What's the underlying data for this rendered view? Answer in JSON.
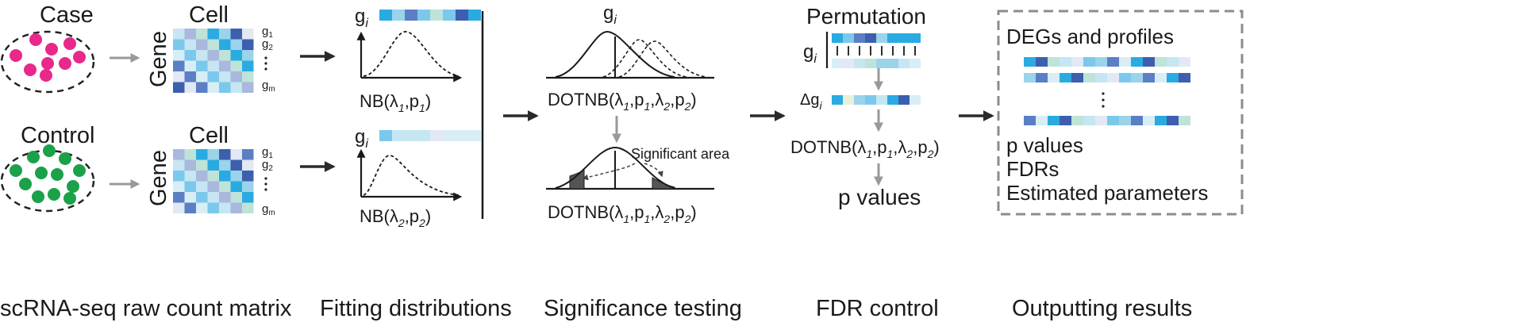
{
  "raw_count": {
    "case_label": "Case",
    "control_label": "Control",
    "cell_label": "Cell",
    "gene_label": "Gene",
    "g1": "g",
    "g1_sub": "1",
    "g2": "g",
    "g2_sub": "2",
    "gm": "g",
    "gm_sub": "m",
    "stage_label": "scRNA-seq raw count matrix"
  },
  "fitting": {
    "gi": "g",
    "gi_sub": "i",
    "nb1": "NB(λ",
    "nb1_s1": "1",
    "nb1_mid": ",p",
    "nb1_s2": "1",
    "nb1_end": ")",
    "nb2": "NB(λ",
    "nb2_s1": "2",
    "nb2_mid": ",p",
    "nb2_s2": "2",
    "nb2_end": ")",
    "stage_label": "Fitting distributions"
  },
  "significance": {
    "gi": "g",
    "gi_sub": "i",
    "dotnb": "DOTNB(λ",
    "s1": "1",
    "c1": ",p",
    "s2": "1",
    "c2": ",λ",
    "s3": "2",
    "c3": ",p",
    "s4": "2",
    "end": ")",
    "significant_area": "Significant area",
    "stage_label": "Significance testing"
  },
  "fdr": {
    "permutation": "Permutation",
    "gi": "g",
    "gi_sub": "i",
    "delta_gi": "Δg",
    "delta_sub": "i",
    "dotnb": "DOTNB(λ",
    "s1": "1",
    "c1": ",p",
    "s2": "1",
    "c2": ",λ",
    "s3": "2",
    "c3": ",p",
    "s4": "2",
    "end": ")",
    "p_values": "p values",
    "stage_label": "FDR control"
  },
  "output": {
    "degs": "DEGs and profiles",
    "p_values": "p values",
    "fdrs": "FDRs",
    "estimated": "Estimated parameters",
    "stage_label": "Outputting results"
  },
  "colors": {
    "case_dot": "#e8288a",
    "control_dot": "#1aa14a",
    "arrow_gray": "#999999",
    "arrow_dark": "#2a2a2a",
    "border_gray": "#8c8c8c"
  }
}
